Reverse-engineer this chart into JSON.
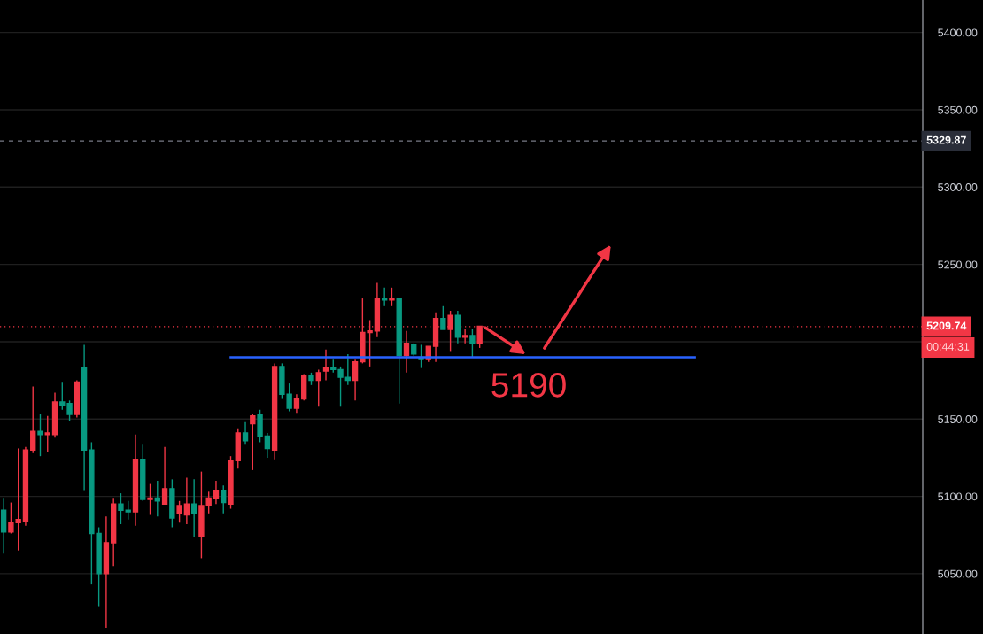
{
  "chart_data": {
    "type": "candlestick",
    "categories": [
      null,
      null,
      null,
      null,
      null,
      null,
      null,
      null,
      null,
      null,
      null,
      null,
      null,
      null,
      null,
      null,
      null,
      null,
      null,
      null,
      null,
      null,
      null,
      null,
      null,
      null,
      null,
      null,
      null,
      null,
      null,
      null,
      null,
      null,
      null,
      null,
      null,
      null,
      null,
      null,
      null,
      null,
      null,
      null,
      null,
      null,
      null,
      null,
      null,
      null,
      null,
      null,
      null,
      null,
      null,
      null,
      null,
      null,
      null,
      null,
      null,
      null,
      null,
      null,
      null,
      null,
      null,
      null,
      null,
      null,
      null,
      null,
      null,
      null,
      null,
      null,
      null,
      null,
      null,
      null,
      null,
      null,
      null,
      null,
      null,
      null,
      null,
      null,
      null,
      null,
      null,
      null,
      null,
      null,
      null,
      null,
      null,
      null,
      null,
      null,
      null,
      null,
      null,
      null,
      null,
      null,
      null,
      null,
      null,
      null,
      null,
      null,
      null,
      null,
      null,
      null,
      null,
      null,
      null,
      null,
      null,
      null,
      null,
      null,
      null,
      null
    ],
    "ohlc": [
      [
        5091,
        5099,
        5063,
        5077
      ],
      [
        5077,
        5096,
        5076,
        5083
      ],
      [
        5083,
        5131,
        5065,
        5085
      ],
      [
        5084,
        5132,
        5081,
        5130
      ],
      [
        5130,
        5171,
        5128,
        5142
      ],
      [
        5142,
        5153,
        5126,
        5140
      ],
      [
        5140,
        5152,
        5129,
        5141
      ],
      [
        5140,
        5167,
        5138,
        5161
      ],
      [
        5161,
        5174,
        5156,
        5159
      ],
      [
        5160,
        5162,
        5149,
        5153
      ],
      [
        5153,
        5175,
        5151,
        5174
      ],
      [
        5183,
        5198,
        5104,
        5130
      ],
      [
        5130,
        5135,
        5043,
        5076
      ],
      [
        5076,
        5080,
        5029,
        5050
      ],
      [
        5050,
        5087,
        5015,
        5070
      ],
      [
        5070,
        5099,
        5055,
        5095
      ],
      [
        5095,
        5102,
        5082,
        5091
      ],
      [
        5091,
        5097,
        5085,
        5090
      ],
      [
        5090,
        5140,
        5081,
        5124
      ],
      [
        5124,
        5134,
        5097,
        5098
      ],
      [
        5098,
        5108,
        5088,
        5099
      ],
      [
        5099,
        5110,
        5087,
        5097
      ],
      [
        5095,
        5132,
        5095,
        5105
      ],
      [
        5105,
        5111,
        5080,
        5086
      ],
      [
        5089,
        5097,
        5083,
        5094
      ],
      [
        5088,
        5112,
        5082,
        5095
      ],
      [
        5095,
        5111,
        5074,
        5089
      ],
      [
        5074,
        5116,
        5060,
        5094
      ],
      [
        5094,
        5103,
        5089,
        5099
      ],
      [
        5099,
        5110,
        5095,
        5104
      ],
      [
        5104,
        5107,
        5089,
        5096
      ],
      [
        5095,
        5126,
        5092,
        5123
      ],
      [
        5123,
        5144,
        5118,
        5141
      ],
      [
        5141,
        5148,
        5134,
        5136
      ],
      [
        5147,
        5153,
        5117,
        5152
      ],
      [
        5153,
        5156,
        5135,
        5139
      ],
      [
        5139,
        5141,
        5125,
        5131
      ],
      [
        5130,
        5186,
        5124,
        5184
      ],
      [
        5184,
        5186,
        5163,
        5166
      ],
      [
        5166,
        5173,
        5155,
        5157
      ],
      [
        5157,
        5166,
        5154,
        5163
      ],
      [
        5163,
        5179,
        5162,
        5178
      ],
      [
        5178,
        5180,
        5172,
        5175
      ],
      [
        5175,
        5182,
        5158,
        5180
      ],
      [
        5181,
        5195,
        5175,
        5183
      ],
      [
        5183,
        5189,
        5180,
        5182
      ],
      [
        5182,
        5184,
        5158,
        5177
      ],
      [
        5177,
        5192,
        5172,
        5175
      ],
      [
        5175,
        5189,
        5162,
        5187
      ],
      [
        5187,
        5228,
        5186,
        5206
      ],
      [
        5206,
        5214,
        5184,
        5207
      ],
      [
        5207,
        5238,
        5203,
        5228
      ],
      [
        5228,
        5235,
        5223,
        5227
      ],
      [
        5227,
        5235,
        5223,
        5228
      ],
      [
        5228,
        5228,
        5160,
        5191
      ],
      [
        5191,
        5207,
        5180,
        5199
      ],
      [
        5198,
        5199,
        5191,
        5192
      ],
      [
        5190,
        5198,
        5183,
        5189
      ],
      [
        5189,
        5197,
        5187,
        5197
      ],
      [
        5197,
        5219,
        5187,
        5215
      ],
      [
        5215,
        5223,
        5208,
        5208
      ],
      [
        5208,
        5220,
        5194,
        5217
      ],
      [
        5217,
        5220,
        5199,
        5203
      ],
      [
        5203,
        5208,
        5199,
        5204
      ],
      [
        5204,
        5208,
        5190,
        5199
      ],
      [
        5199,
        5210,
        5196,
        5210
      ],
      null,
      null,
      null,
      null,
      null,
      null,
      null,
      null,
      null,
      null,
      null,
      null,
      null,
      null,
      null,
      null,
      null,
      null,
      null,
      null,
      null,
      null,
      null,
      null,
      null,
      null,
      null,
      null,
      null,
      null,
      null,
      null,
      null,
      null,
      null,
      null,
      null,
      null,
      null,
      null,
      null,
      null,
      null,
      null,
      null,
      null,
      null,
      null,
      null,
      null,
      null,
      null,
      null,
      null,
      null,
      null,
      null,
      null,
      null,
      null
    ],
    "colors": [
      "#089981",
      "#f23645",
      "#f23645",
      "#f23645",
      "#f23645",
      "#089981",
      "#f23645",
      "#f23645",
      "#089981",
      "#089981",
      "#f23645",
      "#089981",
      "#089981",
      "#089981",
      "#f23645",
      "#f23645",
      "#089981",
      "#089981",
      "#f23645",
      "#089981",
      "#f23645",
      "#089981",
      "#f23645",
      "#089981",
      "#f23645",
      "#f23645",
      "#089981",
      "#f23645",
      "#f23645",
      "#f23645",
      "#089981",
      "#f23645",
      "#f23645",
      "#089981",
      "#f23645",
      "#089981",
      "#089981",
      "#f23645",
      "#089981",
      "#089981",
      "#f23645",
      "#f23645",
      "#089981",
      "#f23645",
      "#f23645",
      "#089981",
      "#089981",
      "#089981",
      "#f23645",
      "#f23645",
      "#f23645",
      "#f23645",
      "#089981",
      "#f23645",
      "#089981",
      "#f23645",
      "#089981",
      "#089981",
      "#f23645",
      "#f23645",
      "#089981",
      "#f23645",
      "#089981",
      "#f23645",
      "#089981",
      "#f23645",
      null,
      null,
      null,
      null,
      null,
      null,
      null,
      null,
      null,
      null,
      null,
      null,
      null,
      null,
      null,
      null,
      null,
      null,
      null,
      null,
      null,
      null,
      null,
      null,
      null,
      null,
      null,
      null,
      null,
      null,
      null,
      null,
      null,
      null,
      null,
      null,
      null,
      null,
      null,
      null,
      null,
      null,
      null,
      null,
      null,
      null,
      null,
      null,
      null,
      null,
      null,
      null,
      null,
      null,
      null,
      null,
      null,
      null,
      null,
      null
    ],
    "ylim": [
      5011,
      5421
    ],
    "yticks": [
      {
        "value": 5050,
        "label": "5050.00"
      },
      {
        "value": 5100,
        "label": "5100.00"
      },
      {
        "value": 5150,
        "label": "5150.00"
      },
      {
        "value": 5200,
        "label": null
      },
      {
        "value": 5250,
        "label": "5250.00"
      },
      {
        "value": 5300,
        "label": "5300.00"
      },
      {
        "value": 5350,
        "label": "5350.00"
      },
      {
        "value": 5400,
        "label": "5400.00"
      }
    ],
    "tick_labels": "y",
    "grid": "y",
    "ref_lines": [
      {
        "axis": "y",
        "value": 5190,
        "label": "5190",
        "color": "#2962ff",
        "line_style": "solid"
      },
      {
        "axis": "y",
        "value": 5329.87,
        "label": "5329.87",
        "color": "#787b86",
        "line_style": "dashed"
      },
      {
        "axis": "y",
        "value": 5209.74,
        "label": "5209.74",
        "color": "#f23645",
        "line_style": "dotted"
      }
    ],
    "annotations": [
      "00:44:31"
    ]
  }
}
